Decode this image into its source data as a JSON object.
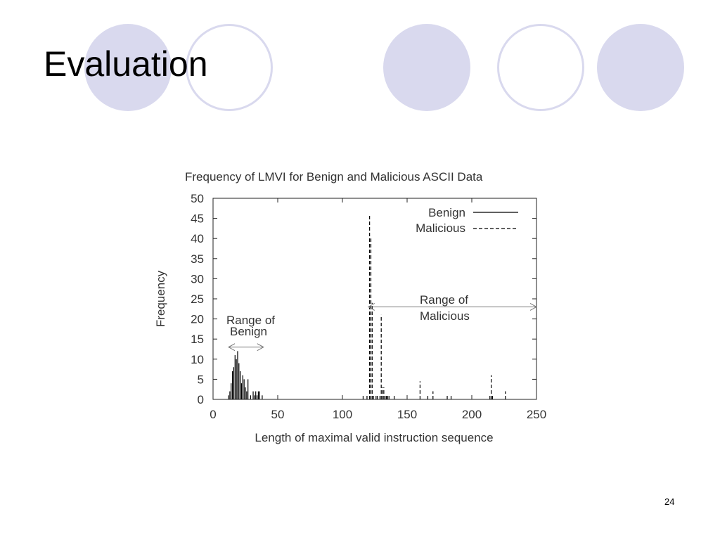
{
  "slide": {
    "title": "Evaluation",
    "page_number": "24",
    "decoration_colors": {
      "filled": "#d9d9ee",
      "outline": "#d9d9ee"
    }
  },
  "chart_data": {
    "type": "bar",
    "title": "Frequency of LMVI for Benign and Malicious ASCII Data",
    "xlabel": "Length of maximal valid instruction sequence",
    "ylabel": "Frequency",
    "xlim": [
      0,
      250
    ],
    "ylim": [
      0,
      50
    ],
    "xticks": [
      0,
      50,
      100,
      150,
      200,
      250
    ],
    "yticks": [
      0,
      5,
      10,
      15,
      20,
      25,
      30,
      35,
      40,
      45,
      50
    ],
    "grid": false,
    "legend_position": "top-right",
    "series": [
      {
        "name": "Benign",
        "line_style": "solid",
        "x": [
          12,
          13,
          14,
          15,
          16,
          17,
          18,
          19,
          20,
          21,
          22,
          23,
          24,
          25,
          26,
          27,
          29,
          31,
          32,
          33,
          34,
          35,
          36,
          38
        ],
        "values": [
          1,
          2,
          4,
          7,
          8,
          11,
          10,
          12,
          9,
          7,
          4,
          6,
          5,
          3,
          2,
          5,
          1,
          2,
          1,
          2,
          1,
          2,
          2,
          1
        ]
      },
      {
        "name": "Malicious",
        "line_style": "dashed",
        "x": [
          116,
          119,
          121,
          122,
          123,
          124,
          126,
          127,
          129,
          130,
          131,
          132,
          133,
          134,
          135,
          136,
          140,
          160,
          166,
          170,
          181,
          184,
          214,
          215,
          216,
          226
        ],
        "values": [
          1,
          1,
          46,
          40,
          24,
          1,
          1,
          1,
          1,
          21,
          3,
          3,
          1,
          1,
          1,
          1,
          1,
          4.5,
          1,
          2,
          1,
          1,
          1,
          6,
          1,
          2
        ]
      }
    ],
    "annotations": [
      {
        "label_line1": "Range of",
        "label_line2": "Benign",
        "x_from": 12,
        "x_to": 39,
        "y": 13
      },
      {
        "label_line1": "Range of",
        "label_line2": "Malicious",
        "x_from": 120,
        "x_to": 250,
        "y": 23
      }
    ]
  }
}
